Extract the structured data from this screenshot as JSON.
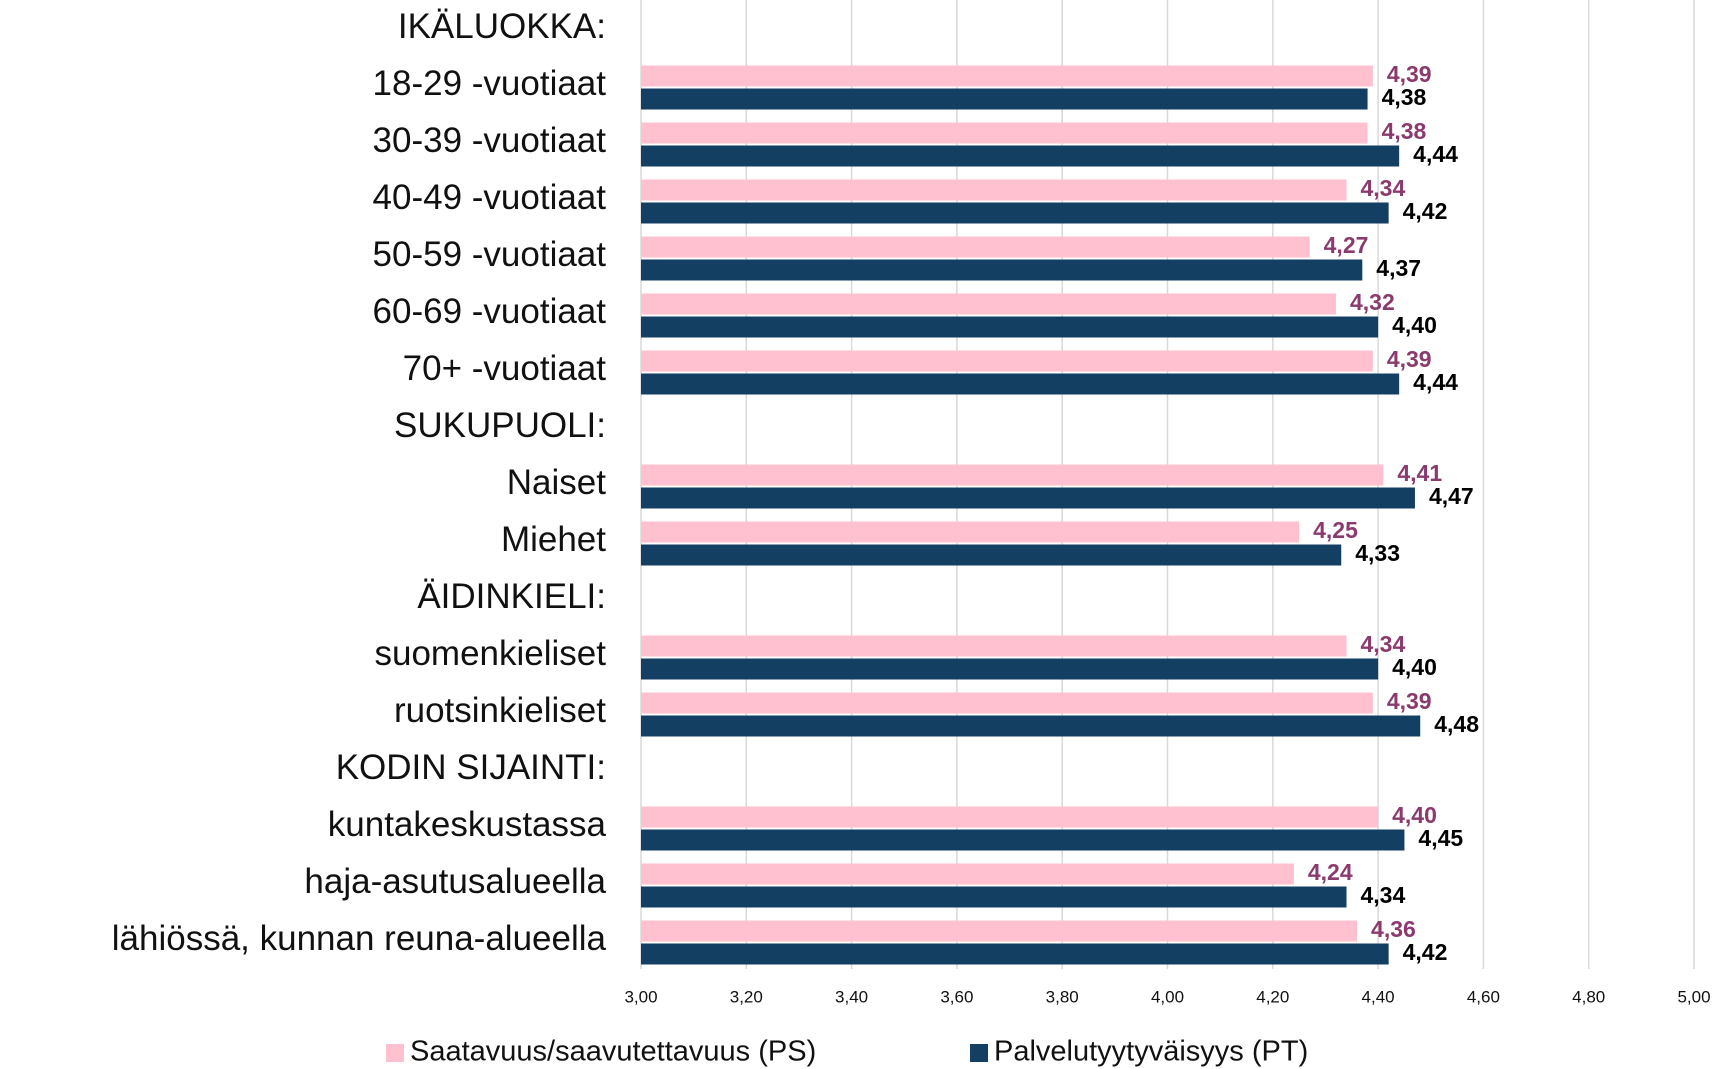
{
  "chart_data": {
    "type": "bar",
    "orientation": "horizontal",
    "categories": [
      "IKÄLUOKKA:",
      "18-29 -vuotiaat",
      "30-39 -vuotiaat",
      "40-49 -vuotiaat",
      "50-59 -vuotiaat",
      "60-69 -vuotiaat",
      "70+ -vuotiaat",
      "SUKUPUOLI:",
      "Naiset",
      "Miehet",
      "ÄIDINKIELI:",
      "suomenkieliset",
      "ruotsinkieliset",
      "KODIN SIJAINTI:",
      "kuntakeskustassa",
      "haja-asutusalueella",
      "lähiössä, kunnan reuna-alueella"
    ],
    "series": [
      {
        "name": "Saatavuus/saavutettavuus (PS)",
        "color": "#ffc0d0",
        "label_color": "#8b3a6e",
        "values": [
          null,
          4.39,
          4.38,
          4.34,
          4.27,
          4.32,
          4.39,
          null,
          4.41,
          4.25,
          null,
          4.34,
          4.39,
          null,
          4.4,
          4.24,
          4.36
        ],
        "value_labels": [
          null,
          "4,39",
          "4,38",
          "4,34",
          "4,27",
          "4,32",
          "4,39",
          null,
          "4,41",
          "4,25",
          null,
          "4,34",
          "4,39",
          null,
          "4,40",
          "4,24",
          "4,36"
        ]
      },
      {
        "name": "Palvelutyytyväisyys (PT)",
        "color": "#133f63",
        "label_color": "#000000",
        "values": [
          null,
          4.38,
          4.44,
          4.42,
          4.37,
          4.4,
          4.44,
          null,
          4.47,
          4.33,
          null,
          4.4,
          4.48,
          null,
          4.45,
          4.34,
          4.42
        ],
        "value_labels": [
          null,
          "4,38",
          "4,44",
          "4,42",
          "4,37",
          "4,40",
          "4,44",
          null,
          "4,47",
          "4,33",
          null,
          "4,40",
          "4,48",
          null,
          "4,45",
          "4,34",
          "4,42"
        ]
      }
    ],
    "xlim": [
      3,
      5
    ],
    "xticks": [
      {
        "value": 3,
        "label": "3,00"
      },
      {
        "value": 3.2,
        "label": "3,20"
      },
      {
        "value": 3.4,
        "label": "3,40"
      },
      {
        "value": 3.6,
        "label": "3,60"
      },
      {
        "value": 3.8,
        "label": "3,80"
      },
      {
        "value": 4,
        "label": "4,00"
      },
      {
        "value": 4.2,
        "label": "4,20"
      },
      {
        "value": 4.4,
        "label": "4,40"
      },
      {
        "value": 4.6,
        "label": "4,60"
      },
      {
        "value": 4.8,
        "label": "4,80"
      },
      {
        "value": 5,
        "label": "5,00"
      }
    ],
    "grid": true,
    "legend": "bottom"
  }
}
